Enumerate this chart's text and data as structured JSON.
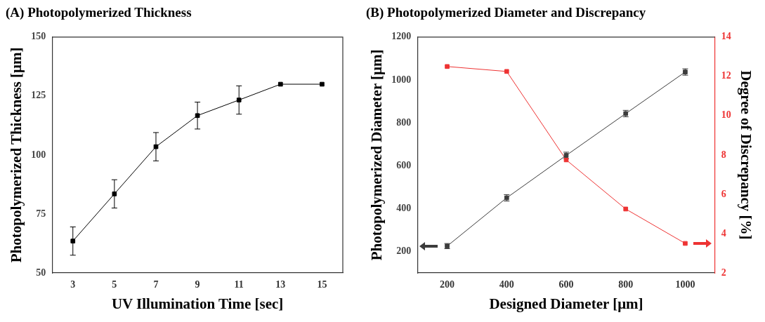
{
  "chart_data": [
    {
      "type": "line",
      "title": "(A) Photopolymerized Thickness",
      "xlabel": "UV Illumination Time [sec]",
      "ylabel": "Photopolymerized Thickness [μm]",
      "x": [
        3,
        5,
        7,
        9,
        11,
        13,
        15
      ],
      "xlim": [
        2,
        16
      ],
      "xticks": [
        3,
        5,
        7,
        9,
        11,
        13,
        15
      ],
      "ylim": [
        50,
        150
      ],
      "yticks": [
        50,
        75,
        100,
        125,
        150
      ],
      "marker": "square",
      "grid": false,
      "legend": false,
      "series": [
        {
          "color": "#000000",
          "values": [
            63.5,
            83.5,
            103.5,
            116.7,
            123.3,
            130,
            130
          ],
          "errors": [
            6,
            6,
            6,
            5.7,
            6,
            null,
            null
          ]
        }
      ]
    },
    {
      "type": "line",
      "title": "(B) Photopolymerized Diameter and Discrepancy",
      "xlabel": "Designed Diameter [μm]",
      "ylabel": "Photopolymerized Diameter [μm]",
      "y2label": "Degree of Discrepancy [%]",
      "x": [
        200,
        400,
        600,
        800,
        1000
      ],
      "xlim": [
        100,
        1100
      ],
      "xticks": [
        200,
        400,
        600,
        800,
        1000
      ],
      "ylim": [
        100,
        1200
      ],
      "yticks": [
        200,
        400,
        600,
        800,
        1000,
        1200
      ],
      "y2lim": [
        2,
        14
      ],
      "y2ticks": [
        2,
        4,
        6,
        8,
        10,
        12,
        14
      ],
      "marker": "square",
      "grid": false,
      "legend": false,
      "series": [
        {
          "color": "#3c3c3c",
          "values": [
            225,
            450,
            648,
            843,
            1037
          ],
          "errors": [
            12,
            15,
            15,
            15,
            15
          ]
        },
        {
          "color": "#ee3333",
          "axis": "y2",
          "values": [
            12.5,
            12.25,
            7.75,
            5.25,
            3.5
          ]
        }
      ]
    }
  ]
}
